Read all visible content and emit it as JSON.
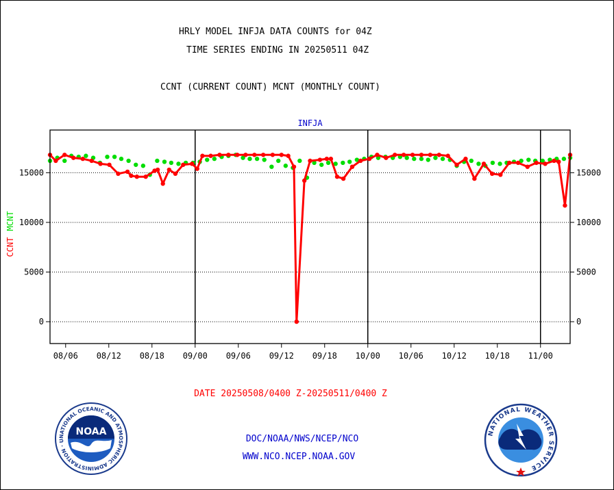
{
  "titles": {
    "line1": "HRLY MODEL INFJA DATA COUNTS for 04Z",
    "line2": "TIME SERIES ENDING IN 20250511 04Z",
    "line3": "CCNT (CURRENT COUNT) MCNT (MONTHLY COUNT)"
  },
  "footer": {
    "date_range": "DATE 20250508/0400 Z-20250511/0400 Z",
    "org": "DOC/NOAA/NWS/NCEP/NCO",
    "url": "WWW.NCO.NCEP.NOAA.GOV",
    "noaa_logo_text": "NOAA",
    "noaa_ring_text": "NATIONAL OCEANIC AND ATMOSPHERIC ADMINISTRATION · U.S. DEPARTMENT OF COMMERCE",
    "nws_ring_text": "NATIONAL WEATHER SERVICE"
  },
  "colors": {
    "ccnt": "#ff0000",
    "mcnt": "#00dd00",
    "panel_title": "#0000cc",
    "footer_text": "#0000cc",
    "date_text": "#ff0000"
  },
  "chart_data": {
    "type": "line",
    "panel_title": "INFJA",
    "ylabel_ccnt": "CCNT",
    "ylabel_mcnt": "MCNT",
    "ylim": [
      -2200,
      19300
    ],
    "yticks": [
      0,
      5000,
      10000,
      15000
    ],
    "ytick_labels": [
      "0",
      "5000",
      "10000",
      "15000"
    ],
    "xlim": [
      0,
      100
    ],
    "xticks": [
      3,
      11.3,
      19.6,
      27.9,
      36.2,
      44.5,
      52.8,
      61.1,
      69.4,
      77.7,
      86,
      94.3
    ],
    "xtick_labels": [
      "08/06",
      "08/12",
      "08/18",
      "09/00",
      "09/06",
      "09/12",
      "09/18",
      "10/00",
      "10/06",
      "10/12",
      "10/18",
      "11/00"
    ],
    "month_separators": [
      27.9,
      61.1,
      94.3
    ],
    "grid": "horizontal-dotted",
    "series": [
      {
        "name": "CCNT",
        "style": "line-with-points",
        "x": [
          0,
          1.1,
          2.8,
          4.5,
          6.3,
          8,
          9.7,
          11.4,
          13.1,
          14.9,
          15.6,
          16.7,
          18.4,
          20.1,
          20.7,
          21.7,
          22.9,
          24.1,
          25.6,
          27.3,
          28.3,
          29.3,
          30.9,
          32.6,
          34.3,
          36,
          37.6,
          39.3,
          41,
          42.8,
          44.5,
          45.8,
          46.9,
          47.4,
          48.9,
          50,
          51.9,
          53.2,
          54,
          55.2,
          56.4,
          58.1,
          59.7,
          61.4,
          62.9,
          64.6,
          66.3,
          68,
          69.7,
          71.4,
          73.1,
          74.8,
          76.5,
          78.2,
          79.9,
          81.6,
          83.4,
          85,
          86.6,
          88.3,
          90,
          91.8,
          93.5,
          95.2,
          96.9,
          97.8,
          99,
          100
        ],
        "y": [
          16800,
          16200,
          16800,
          16500,
          16400,
          16200,
          15900,
          15800,
          14900,
          15100,
          14700,
          14600,
          14600,
          15200,
          15300,
          13900,
          15300,
          14900,
          15800,
          15900,
          15400,
          16700,
          16700,
          16800,
          16800,
          16800,
          16800,
          16800,
          16800,
          16800,
          16800,
          16700,
          15600,
          0,
          14200,
          16200,
          16300,
          16400,
          16400,
          14600,
          14400,
          15600,
          16200,
          16400,
          16800,
          16500,
          16800,
          16800,
          16800,
          16800,
          16800,
          16800,
          16700,
          15800,
          16400,
          14400,
          15900,
          14900,
          14800,
          16000,
          16000,
          15600,
          16000,
          15900,
          16200,
          16100,
          11700,
          16800
        ]
      },
      {
        "name": "MCNT",
        "style": "points",
        "x": [
          0,
          1.4,
          2.8,
          4.1,
          5.5,
          6.9,
          8.3,
          9.6,
          11,
          12.4,
          13.7,
          15.1,
          16.5,
          17.9,
          19.2,
          20.6,
          22,
          23.3,
          24.7,
          26.1,
          27.5,
          28.8,
          30.2,
          31.6,
          33,
          34.3,
          35.7,
          37.1,
          38.4,
          39.8,
          41.2,
          42.6,
          43.9,
          45.3,
          46.7,
          48,
          49.4,
          50.8,
          52.2,
          53.5,
          54.9,
          56.3,
          57.6,
          59,
          60.4,
          61.8,
          63.1,
          64.5,
          65.9,
          67.3,
          68.6,
          70,
          71.4,
          72.7,
          74.1,
          75.5,
          76.9,
          78.2,
          79.6,
          81,
          82.4,
          83.7,
          85.1,
          86.5,
          87.8,
          89.2,
          90.6,
          92,
          93.3,
          94.7,
          96.1,
          97.4,
          98.8,
          100
        ],
        "y": [
          16200,
          16500,
          16200,
          16700,
          16600,
          16700,
          16500,
          16000,
          16600,
          16600,
          16400,
          16200,
          15800,
          15700,
          14800,
          16200,
          16100,
          16000,
          15900,
          16000,
          16000,
          16100,
          16300,
          16400,
          16600,
          16700,
          16800,
          16500,
          16400,
          16400,
          16300,
          15600,
          16200,
          15700,
          15500,
          16200,
          14500,
          16000,
          15800,
          16000,
          15900,
          16000,
          16100,
          16300,
          16400,
          16600,
          16500,
          16600,
          16500,
          16600,
          16500,
          16400,
          16400,
          16300,
          16500,
          16400,
          16300,
          15700,
          16100,
          16200,
          15900,
          15700,
          16000,
          15900,
          16000,
          16100,
          16200,
          16300,
          16200,
          16200,
          16300,
          16400,
          16400,
          16500
        ]
      }
    ]
  }
}
